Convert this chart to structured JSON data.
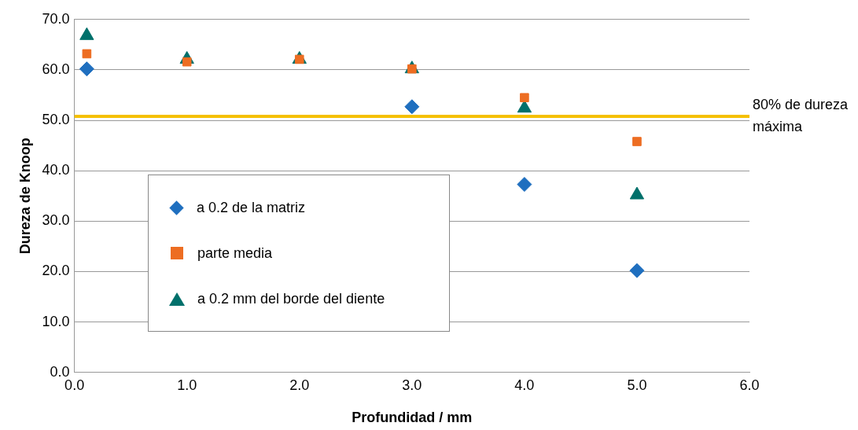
{
  "chart_data": {
    "type": "scatter",
    "xlabel": "Profundidad / mm",
    "ylabel": "Dureza de Knoop",
    "xlim": [
      0,
      6
    ],
    "ylim": [
      0,
      70
    ],
    "xticks": [
      {
        "value": 0,
        "label": "0.0"
      },
      {
        "value": 1,
        "label": "1.0"
      },
      {
        "value": 2,
        "label": "2.0"
      },
      {
        "value": 3,
        "label": "3.0"
      },
      {
        "value": 4,
        "label": "4.0"
      },
      {
        "value": 5,
        "label": "5.0"
      },
      {
        "value": 6,
        "label": "6.0"
      }
    ],
    "yticks": [
      {
        "value": 0,
        "label": "0.0"
      },
      {
        "value": 10,
        "label": "10.0"
      },
      {
        "value": 20,
        "label": "20.0"
      },
      {
        "value": 30,
        "label": "30.0"
      },
      {
        "value": 40,
        "label": "40.0"
      },
      {
        "value": 50,
        "label": "50.0"
      },
      {
        "value": 60,
        "label": "60.0"
      },
      {
        "value": 70,
        "label": "70.0"
      }
    ],
    "grid": "y",
    "legend": "bottom left",
    "x": [
      0.11,
      1,
      2,
      3,
      4,
      5
    ],
    "series": [
      {
        "name": "a 0.2 de la matriz",
        "color": "#1f6fbf",
        "marker": "diamond",
        "values": [
          60.2,
          null,
          null,
          52.7,
          37.3,
          20.2
        ]
      },
      {
        "name": "parte media",
        "color": "#ed6d22",
        "marker": "square",
        "values": [
          63.2,
          61.6,
          62.1,
          60.2,
          54.5,
          45.8
        ]
      },
      {
        "name": "a 0.2 mm del borde del diente",
        "color": "#00706b",
        "marker": "triangle",
        "values": [
          66.8,
          62.1,
          62.1,
          60.2,
          52.4,
          35.2
        ]
      }
    ],
    "ref_lines": [
      {
        "axis": "y",
        "value": 50.8,
        "label": "80% de dureza máxima",
        "color": "#f5c000"
      }
    ]
  }
}
